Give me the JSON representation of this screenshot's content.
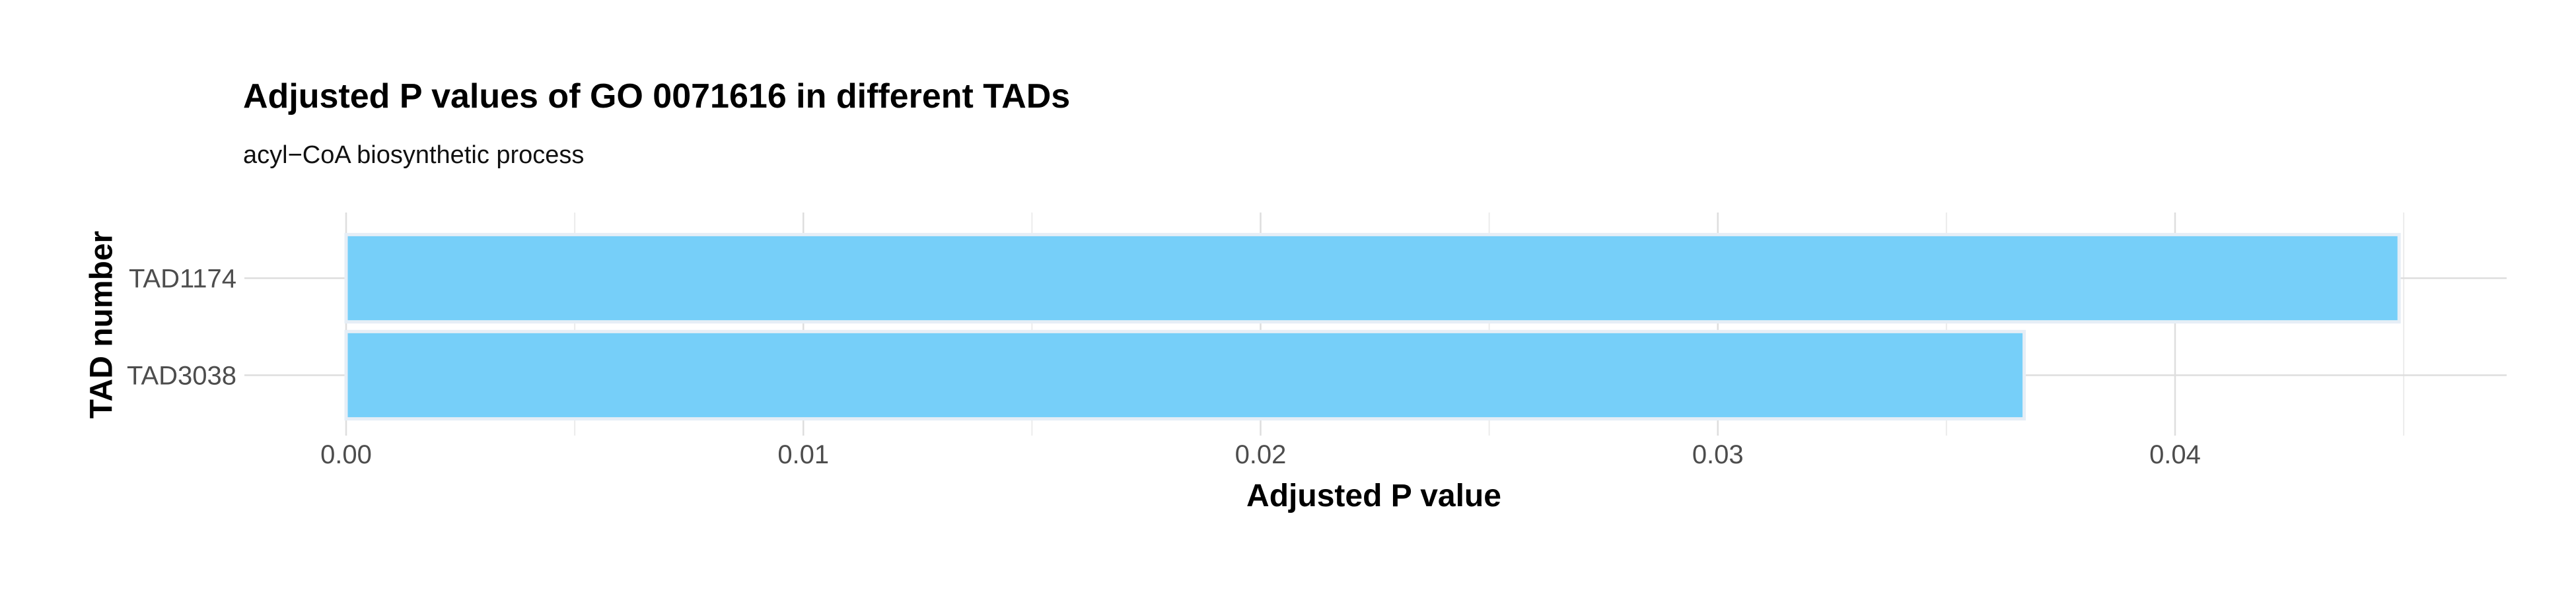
{
  "chart_data": {
    "type": "bar",
    "orientation": "horizontal",
    "title": "Adjusted P values of GO 0071616 in different TADs",
    "subtitle": "acyl−CoA biosynthetic process",
    "xlabel": "Adjusted P value",
    "ylabel": "TAD number",
    "categories": [
      "TAD1174",
      "TAD3038"
    ],
    "values": [
      0.0449,
      0.0367
    ],
    "xlim": [
      0,
      0.047
    ],
    "x_ticks": [
      0.0,
      0.01,
      0.02,
      0.03,
      0.04
    ],
    "x_tick_labels": [
      "0.00",
      "0.01",
      "0.02",
      "0.03",
      "0.04"
    ],
    "grid": true,
    "bar_color": "#76cff9",
    "bar_edge_color": "#e6eef6"
  }
}
